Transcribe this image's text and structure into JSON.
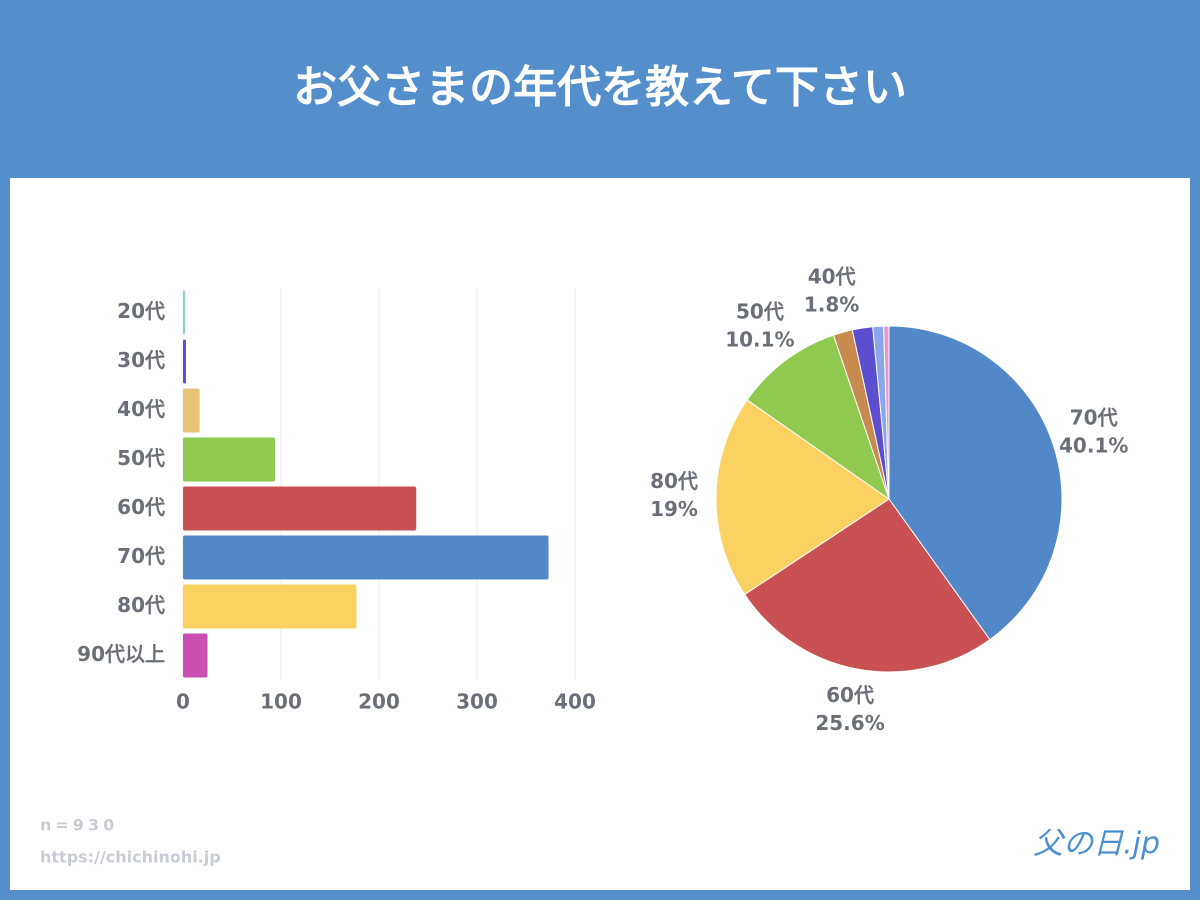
{
  "header": {
    "title": "お父さまの年代を教えて下さい"
  },
  "chart_data": [
    {
      "type": "bar",
      "orientation": "horizontal",
      "categories": [
        "20代",
        "30代",
        "40代",
        "50代",
        "60代",
        "70代",
        "80代",
        "90代以上"
      ],
      "values": [
        2,
        3,
        17,
        94,
        238,
        373,
        177,
        25
      ],
      "colors": [
        "#7fd6d6",
        "#5b4fcf",
        "#e8c476",
        "#8fc94f",
        "#c95053",
        "#5288c8",
        "#fbd262",
        "#c94fb0"
      ],
      "xlim": [
        0,
        400
      ],
      "xticks": [
        0,
        100,
        200,
        300,
        400
      ],
      "grid": true
    },
    {
      "type": "pie",
      "categories": [
        "70代",
        "60代",
        "80代",
        "50代",
        "40代",
        null,
        null,
        null
      ],
      "values": [
        40.1,
        25.6,
        19,
        10.1,
        1.8,
        1.9,
        1.0,
        0.5
      ],
      "value_labels": [
        "40.1%",
        "25.6%",
        "19%",
        "10.1%",
        "1.8%",
        null,
        null,
        null
      ],
      "colors": [
        "#5288c8",
        "#c95053",
        "#fbd262",
        "#8fc94f",
        "#c98a50",
        "#5b4fcf",
        "#8aa8e8",
        "#e39ad0"
      ]
    }
  ],
  "footer": {
    "n": "n=930",
    "url": "https://chichinohi.jp",
    "logo": "父の日.jp"
  }
}
